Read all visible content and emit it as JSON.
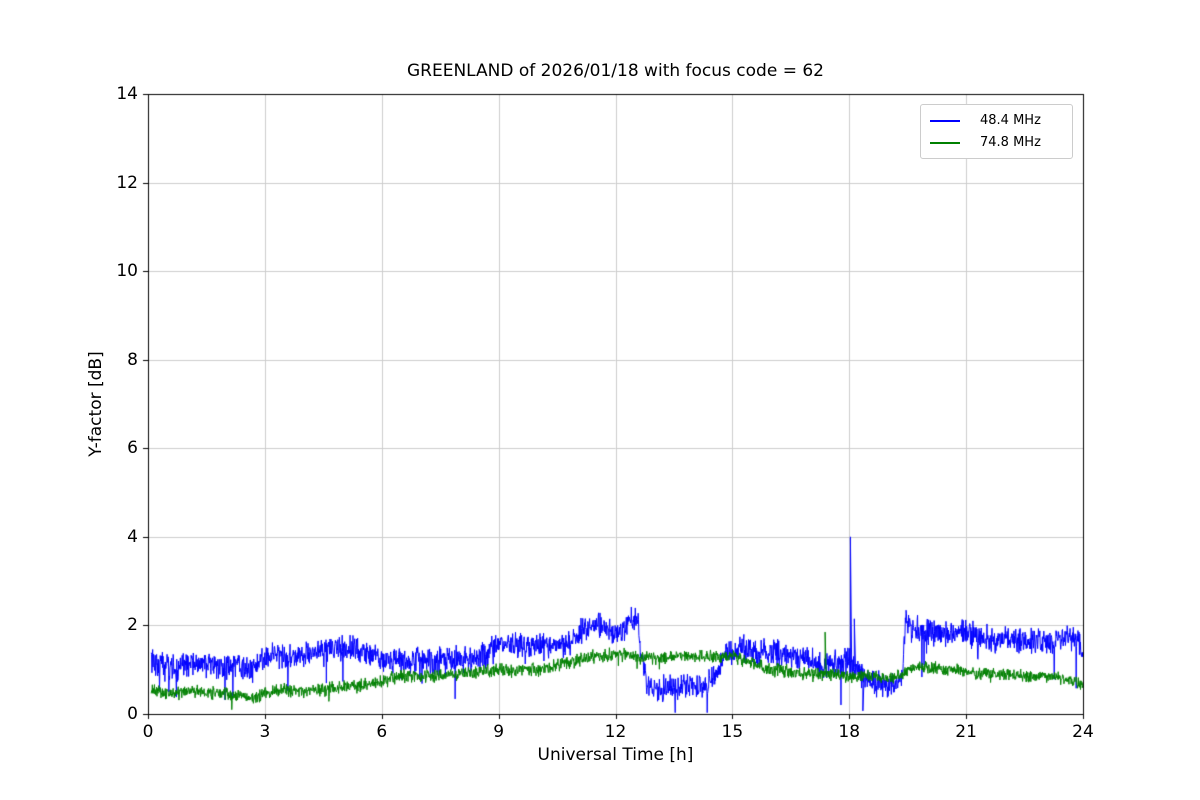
{
  "figure": {
    "background": "#ffffff"
  },
  "chart_data": {
    "type": "line",
    "title": "GREENLAND of 2026/01/18 with focus code = 62",
    "xlabel": "Universal Time [h]",
    "ylabel": "Y-factor [dB]",
    "xlim": [
      0,
      24
    ],
    "ylim": [
      0,
      14
    ],
    "xticks": [
      0,
      3,
      6,
      9,
      12,
      15,
      18,
      21,
      24
    ],
    "yticks": [
      0,
      2,
      4,
      6,
      8,
      10,
      12,
      14
    ],
    "grid": true,
    "grid_color": "#cccccc",
    "legend_position": "upper right",
    "series": [
      {
        "name": "48.4 MHz",
        "color": "#0000ff",
        "noise": 0.24,
        "dip_prob": 0.012,
        "dip_depth": 0.85,
        "x": [
          0.08,
          0.3,
          0.7,
          1.0,
          1.5,
          2.0,
          2.3,
          2.7,
          3.0,
          3.3,
          3.7,
          4.0,
          4.3,
          4.7,
          5.0,
          5.3,
          5.7,
          6.0,
          6.3,
          6.7,
          7.0,
          7.3,
          7.7,
          8.0,
          8.3,
          8.7,
          9.0,
          9.3,
          9.7,
          10.0,
          10.3,
          10.7,
          11.0,
          11.3,
          11.5,
          11.7,
          12.0,
          12.2,
          12.4,
          12.55,
          12.65,
          12.8,
          13.0,
          13.3,
          13.7,
          14.0,
          14.3,
          14.6,
          14.8,
          15.0,
          15.3,
          15.7,
          16.0,
          16.3,
          16.7,
          17.0,
          17.3,
          17.7,
          18.0,
          18.2,
          18.4,
          18.7,
          19.0,
          19.2,
          19.35,
          19.45,
          19.6,
          19.8,
          20.0,
          20.3,
          20.7,
          21.0,
          21.3,
          21.7,
          22.0,
          22.3,
          22.7,
          23.0,
          23.3,
          23.6,
          23.85,
          24.0
        ],
        "y": [
          1.2,
          1.1,
          1.0,
          1.15,
          1.1,
          1.05,
          1.1,
          1.0,
          1.25,
          1.35,
          1.3,
          1.3,
          1.45,
          1.5,
          1.45,
          1.5,
          1.35,
          1.2,
          1.25,
          1.2,
          1.25,
          1.2,
          1.2,
          1.25,
          1.25,
          1.35,
          1.55,
          1.6,
          1.55,
          1.55,
          1.5,
          1.55,
          1.75,
          2.0,
          2.05,
          1.95,
          1.8,
          1.85,
          2.15,
          2.25,
          1.5,
          0.6,
          0.55,
          0.6,
          0.6,
          0.65,
          0.6,
          0.9,
          1.35,
          1.4,
          1.45,
          1.4,
          1.4,
          1.35,
          1.25,
          1.2,
          1.1,
          1.15,
          1.2,
          1.0,
          0.75,
          0.7,
          0.65,
          0.7,
          0.8,
          2.2,
          1.95,
          1.9,
          1.85,
          1.8,
          1.8,
          1.85,
          1.75,
          1.65,
          1.7,
          1.65,
          1.6,
          1.65,
          1.6,
          1.75,
          1.7,
          1.4
        ]
      },
      {
        "name": "74.8 MHz",
        "color": "#008000",
        "noise": 0.12,
        "dip_prob": 0.004,
        "dip_depth": 0.3,
        "x": [
          0.08,
          0.5,
          1.0,
          1.5,
          2.0,
          2.5,
          2.8,
          3.0,
          3.5,
          4.0,
          4.5,
          5.0,
          5.5,
          6.0,
          6.5,
          7.0,
          7.5,
          8.0,
          8.5,
          9.0,
          9.5,
          10.0,
          10.5,
          11.0,
          11.5,
          12.0,
          12.5,
          13.0,
          13.5,
          14.0,
          14.5,
          15.0,
          15.5,
          16.0,
          16.5,
          17.0,
          17.5,
          18.0,
          18.5,
          19.0,
          19.3,
          19.6,
          20.0,
          20.5,
          21.0,
          21.5,
          22.0,
          22.5,
          23.0,
          23.5,
          24.0
        ],
        "y": [
          0.55,
          0.45,
          0.5,
          0.5,
          0.45,
          0.4,
          0.35,
          0.45,
          0.55,
          0.5,
          0.55,
          0.6,
          0.65,
          0.75,
          0.85,
          0.85,
          0.85,
          0.9,
          0.95,
          1.0,
          1.0,
          1.0,
          1.1,
          1.2,
          1.3,
          1.35,
          1.3,
          1.25,
          1.3,
          1.3,
          1.3,
          1.3,
          1.15,
          1.0,
          0.95,
          0.9,
          0.9,
          0.85,
          0.85,
          0.8,
          0.85,
          1.05,
          1.05,
          1.0,
          0.95,
          0.9,
          0.9,
          0.85,
          0.85,
          0.8,
          0.65
        ]
      }
    ],
    "events": [
      {
        "series": 0,
        "x": 18.03,
        "y": 4.0
      },
      {
        "series": 0,
        "x": 18.13,
        "y": 2.15
      },
      {
        "series": 0,
        "x": 18.35,
        "y": 0.07
      },
      {
        "series": 1,
        "x": 17.38,
        "y": 1.85
      }
    ]
  }
}
